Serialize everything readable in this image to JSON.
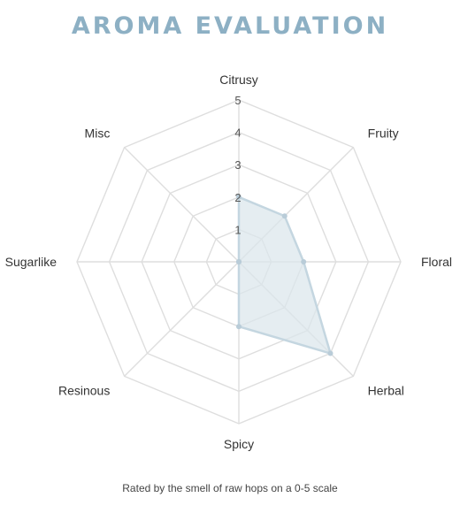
{
  "title": "AROMA EVALUATION",
  "caption": "Rated by the smell of raw hops on a 0-5 scale",
  "colors": {
    "title": "#8db0c4",
    "grid": "#dedede",
    "fill": "#dbe6ec",
    "stroke": "#c4d6e0",
    "point": "#b9ccd8"
  },
  "chart_data": {
    "type": "radar",
    "categories": [
      "Citrusy",
      "Fruity",
      "Floral",
      "Herbal",
      "Spicy",
      "Resinous",
      "Sugarlike",
      "Misc"
    ],
    "values": [
      2,
      2,
      2,
      4,
      2,
      0,
      0,
      0
    ],
    "range": [
      0,
      5
    ],
    "ticks": [
      "1",
      "2",
      "3",
      "4",
      "5"
    ],
    "grid": true
  }
}
